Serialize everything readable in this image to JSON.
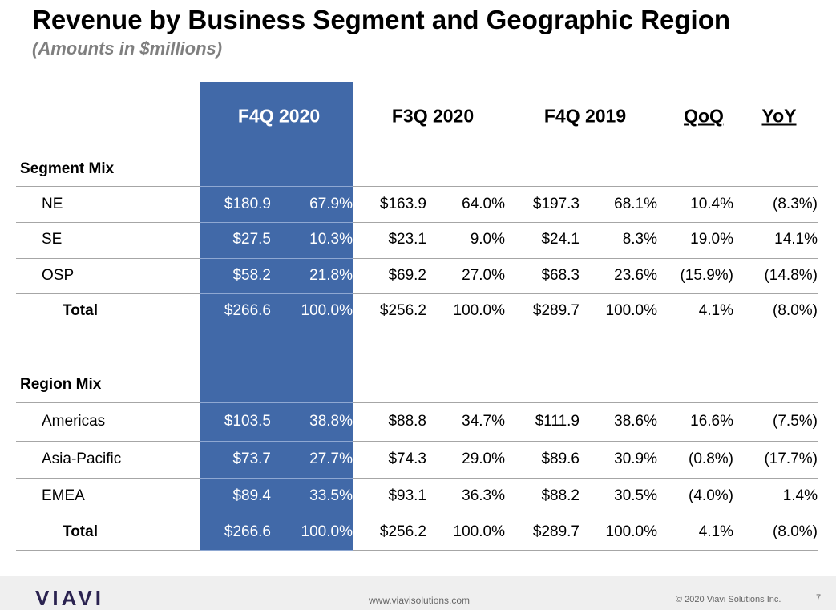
{
  "header": {
    "title": "Revenue by Business Segment and Geographic Region",
    "subtitle": "(Amounts in $millions)"
  },
  "table": {
    "columns": [
      "F4Q 2020",
      "F3Q 2020",
      "F4Q 2019",
      "QoQ",
      "YoY"
    ],
    "sections": [
      {
        "label": "Segment Mix",
        "rows": [
          {
            "label": "NE",
            "cells": [
              "$180.9",
              "67.9%",
              "$163.9",
              "64.0%",
              "$197.3",
              "68.1%",
              "10.4%",
              "(8.3%)"
            ]
          },
          {
            "label": "SE",
            "cells": [
              "$27.5",
              "10.3%",
              "$23.1",
              "9.0%",
              "$24.1",
              "8.3%",
              "19.0%",
              "14.1%"
            ]
          },
          {
            "label": "OSP",
            "cells": [
              "$58.2",
              "21.8%",
              "$69.2",
              "27.0%",
              "$68.3",
              "23.6%",
              "(15.9%)",
              "(14.8%)"
            ]
          },
          {
            "label": "Total",
            "cells": [
              "$266.6",
              "100.0%",
              "$256.2",
              "100.0%",
              "$289.7",
              "100.0%",
              "4.1%",
              "(8.0%)"
            ]
          }
        ]
      },
      {
        "label": "Region Mix",
        "rows": [
          {
            "label": "Americas",
            "cells": [
              "$103.5",
              "38.8%",
              "$88.8",
              "34.7%",
              "$111.9",
              "38.6%",
              "16.6%",
              "(7.5%)"
            ]
          },
          {
            "label": "Asia-Pacific",
            "cells": [
              "$73.7",
              "27.7%",
              "$74.3",
              "29.0%",
              "$89.6",
              "30.9%",
              "(0.8%)",
              "(17.7%)"
            ]
          },
          {
            "label": "EMEA",
            "cells": [
              "$89.4",
              "33.5%",
              "$93.1",
              "36.3%",
              "$88.2",
              "30.5%",
              "(4.0%)",
              "1.4%"
            ]
          },
          {
            "label": "Total",
            "cells": [
              "$266.6",
              "100.0%",
              "$256.2",
              "100.0%",
              "$289.7",
              "100.0%",
              "4.1%",
              "(8.0%)"
            ]
          }
        ]
      }
    ]
  },
  "footer": {
    "logo": "VIAVI",
    "url": "www.viavisolutions.com",
    "copyright": "© 2020 Viavi Solutions Inc.",
    "page": "7"
  }
}
